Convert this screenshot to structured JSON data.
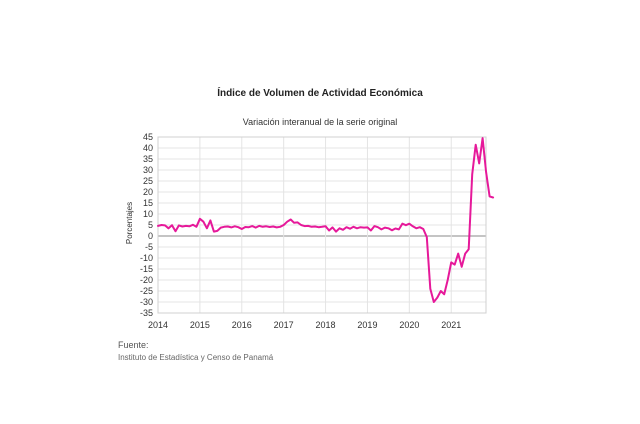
{
  "chart_data": {
    "type": "line",
    "title": "Índice de Volumen de  Actividad Económica",
    "subtitle": "Variación interanual de la serie original",
    "ylabel": "Porcentajes",
    "xlabel": "",
    "ylim": [
      -35,
      45
    ],
    "yticks": [
      45,
      40,
      35,
      30,
      25,
      20,
      15,
      10,
      5,
      0,
      -5,
      -10,
      -15,
      -20,
      -25,
      -30,
      -35
    ],
    "xticks": [
      "2014",
      "2015",
      "2016",
      "2017",
      "2018",
      "2019",
      "2020",
      "2021"
    ],
    "grid": true,
    "series_color": "#e6199a",
    "series": [
      {
        "x_start": 2014.0,
        "x_step_months": 1,
        "values": [
          4.6,
          5.0,
          4.8,
          3.5,
          4.9,
          2.2,
          4.8,
          4.3,
          4.6,
          4.4,
          5.1,
          4.2,
          7.8,
          6.5,
          3.5,
          7.1,
          2.0,
          2.3,
          3.8,
          4.2,
          4.3,
          3.9,
          4.4,
          4.0,
          3.2,
          4.1,
          4.0,
          4.5,
          3.8,
          4.6,
          4.2,
          4.4,
          4.1,
          4.3,
          3.9,
          4.2,
          5.0,
          6.5,
          7.5,
          6.0,
          6.2,
          5.0,
          4.5,
          4.6,
          4.2,
          4.3,
          4.0,
          4.2,
          4.4,
          2.5,
          3.9,
          2.0,
          3.5,
          2.8,
          4.0,
          3.3,
          4.2,
          3.5,
          4.0,
          3.8,
          3.9,
          2.5,
          4.5,
          4.0,
          3.0,
          3.8,
          3.5,
          2.6,
          3.4,
          3.0,
          5.6,
          4.9,
          5.6,
          4.4,
          3.5,
          4.0,
          3.2,
          -0.5,
          -24.0,
          -30.0,
          -28.0,
          -25.0,
          -26.5,
          -20.0,
          -12.0,
          -13.0,
          -8.0,
          -14.0,
          -8.0,
          -6.0,
          28.0,
          41.5,
          33.0,
          44.5,
          29.0,
          18.0,
          17.5
        ]
      }
    ]
  },
  "source": {
    "heading": "Fuente:",
    "text": "Instituto de Estadística y Censo de Panamá"
  }
}
